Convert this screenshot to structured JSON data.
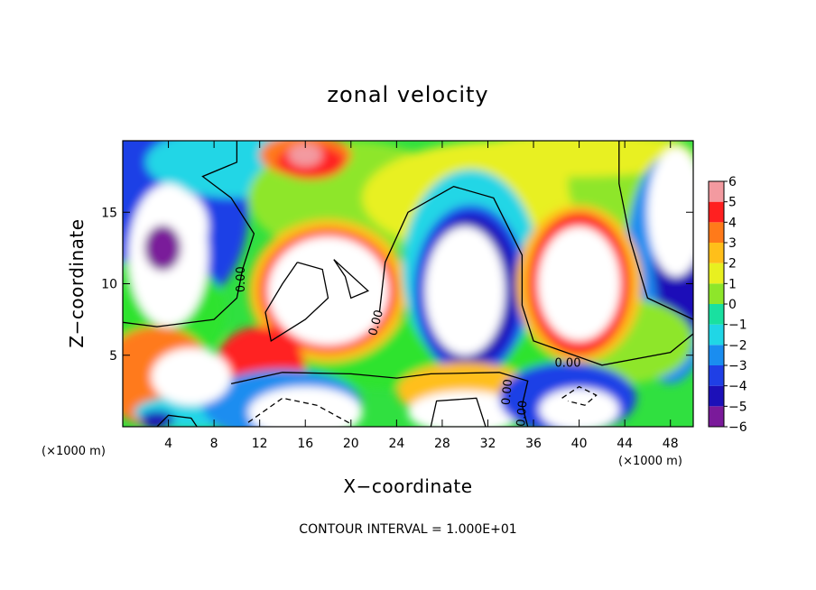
{
  "chart_data": {
    "type": "heatmap",
    "title": "zonal velocity",
    "xlabel": "X−coordinate",
    "ylabel": "Z−coordinate",
    "x_unit": "(×1000 m)",
    "y_unit": "(×1000 m)",
    "xlim": [
      0,
      50
    ],
    "ylim": [
      0,
      20
    ],
    "x_ticks": [
      4,
      8,
      12,
      16,
      20,
      24,
      28,
      32,
      36,
      40,
      44,
      48
    ],
    "x_tick_labels": [
      "4",
      "8",
      "12",
      "16",
      "20",
      "24",
      "28",
      "32",
      "36",
      "40",
      "44",
      "48"
    ],
    "y_ticks": [
      5,
      10,
      15
    ],
    "y_tick_labels": [
      "5",
      "10",
      "15"
    ],
    "colorbar": {
      "min": -6,
      "max": 6,
      "tick_values": [
        6,
        5,
        4,
        3,
        2,
        1,
        0,
        -1,
        -2,
        -3,
        -4,
        -5,
        -6
      ],
      "tick_labels": [
        "6",
        "5",
        "4",
        "3",
        "2",
        "1",
        "0",
        "−1",
        "−2",
        "−3",
        "−4",
        "−5",
        "−6"
      ],
      "stops": [
        {
          "value": -6,
          "color": "#7a1a9a"
        },
        {
          "value": -5,
          "color": "#1c10b8"
        },
        {
          "value": -4,
          "color": "#1f3fe6"
        },
        {
          "value": -3,
          "color": "#1a8df0"
        },
        {
          "value": -2,
          "color": "#20d6e6"
        },
        {
          "value": -1,
          "color": "#19e0a0"
        },
        {
          "value": 0,
          "color": "#2ee32e"
        },
        {
          "value": 1,
          "color": "#8ee62a"
        },
        {
          "value": 2,
          "color": "#e8f020"
        },
        {
          "value": 3,
          "color": "#ffbf1a"
        },
        {
          "value": 4,
          "color": "#ff7a1a"
        },
        {
          "value": 5,
          "color": "#ff2020"
        },
        {
          "value": 6,
          "color": "#f39aa0"
        }
      ],
      "out_of_range_color": "#ffffff"
    },
    "contour_level_labels": [
      "0.00",
      "0.00",
      "0.00",
      "0.00",
      "0.00"
    ],
    "note": "CONTOUR INTERVAL = 1.000E+01"
  }
}
